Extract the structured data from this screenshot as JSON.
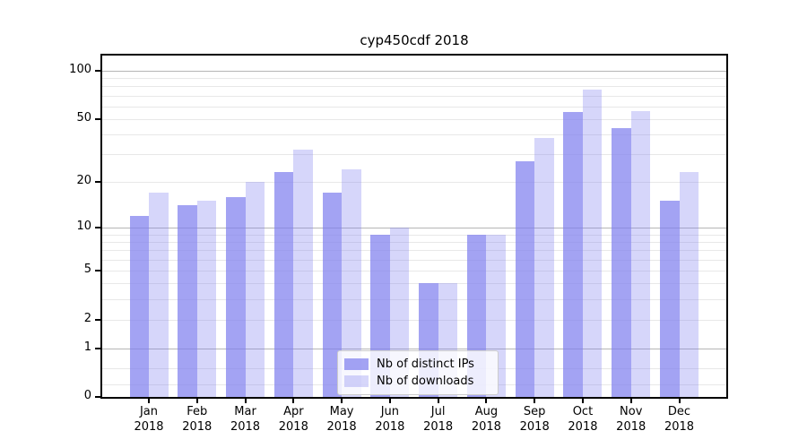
{
  "chart_data": {
    "type": "bar",
    "title": "cyp450cdf 2018",
    "categories": [
      "Jan 2018",
      "Feb 2018",
      "Mar 2018",
      "Apr 2018",
      "May 2018",
      "Jun 2018",
      "Jul 2018",
      "Aug 2018",
      "Sep 2018",
      "Oct 2018",
      "Nov 2018",
      "Dec 2018"
    ],
    "series": [
      {
        "name": "Nb of distinct IPs",
        "values": [
          12,
          14,
          16,
          23,
          17,
          9,
          4,
          9,
          27,
          55,
          44,
          15
        ],
        "color": "rgba(128,128,238,0.72)"
      },
      {
        "name": "Nb of downloads",
        "values": [
          17,
          15,
          20,
          32,
          24,
          10,
          4,
          9,
          38,
          76,
          56,
          23
        ],
        "color": "rgba(128,128,238,0.32)"
      }
    ],
    "xlabel": "",
    "ylabel": "",
    "yscale": "log1p",
    "ylim": [
      0,
      126
    ],
    "y_tick_values": [
      0,
      1,
      2,
      5,
      10,
      20,
      50,
      100
    ],
    "y_major_grid": [
      1,
      10,
      100
    ],
    "y_minor_grid": [
      0.2,
      0.5,
      2,
      3,
      4,
      5,
      6,
      7,
      8,
      9,
      20,
      30,
      40,
      50,
      60,
      70,
      80,
      90
    ],
    "grid_on": true,
    "legend_position": "lower center"
  },
  "colors": {
    "major_grid": "#b5b5b5",
    "minor_grid": "#e8e8e8",
    "spine": "#000000",
    "background": "#ffffff"
  }
}
